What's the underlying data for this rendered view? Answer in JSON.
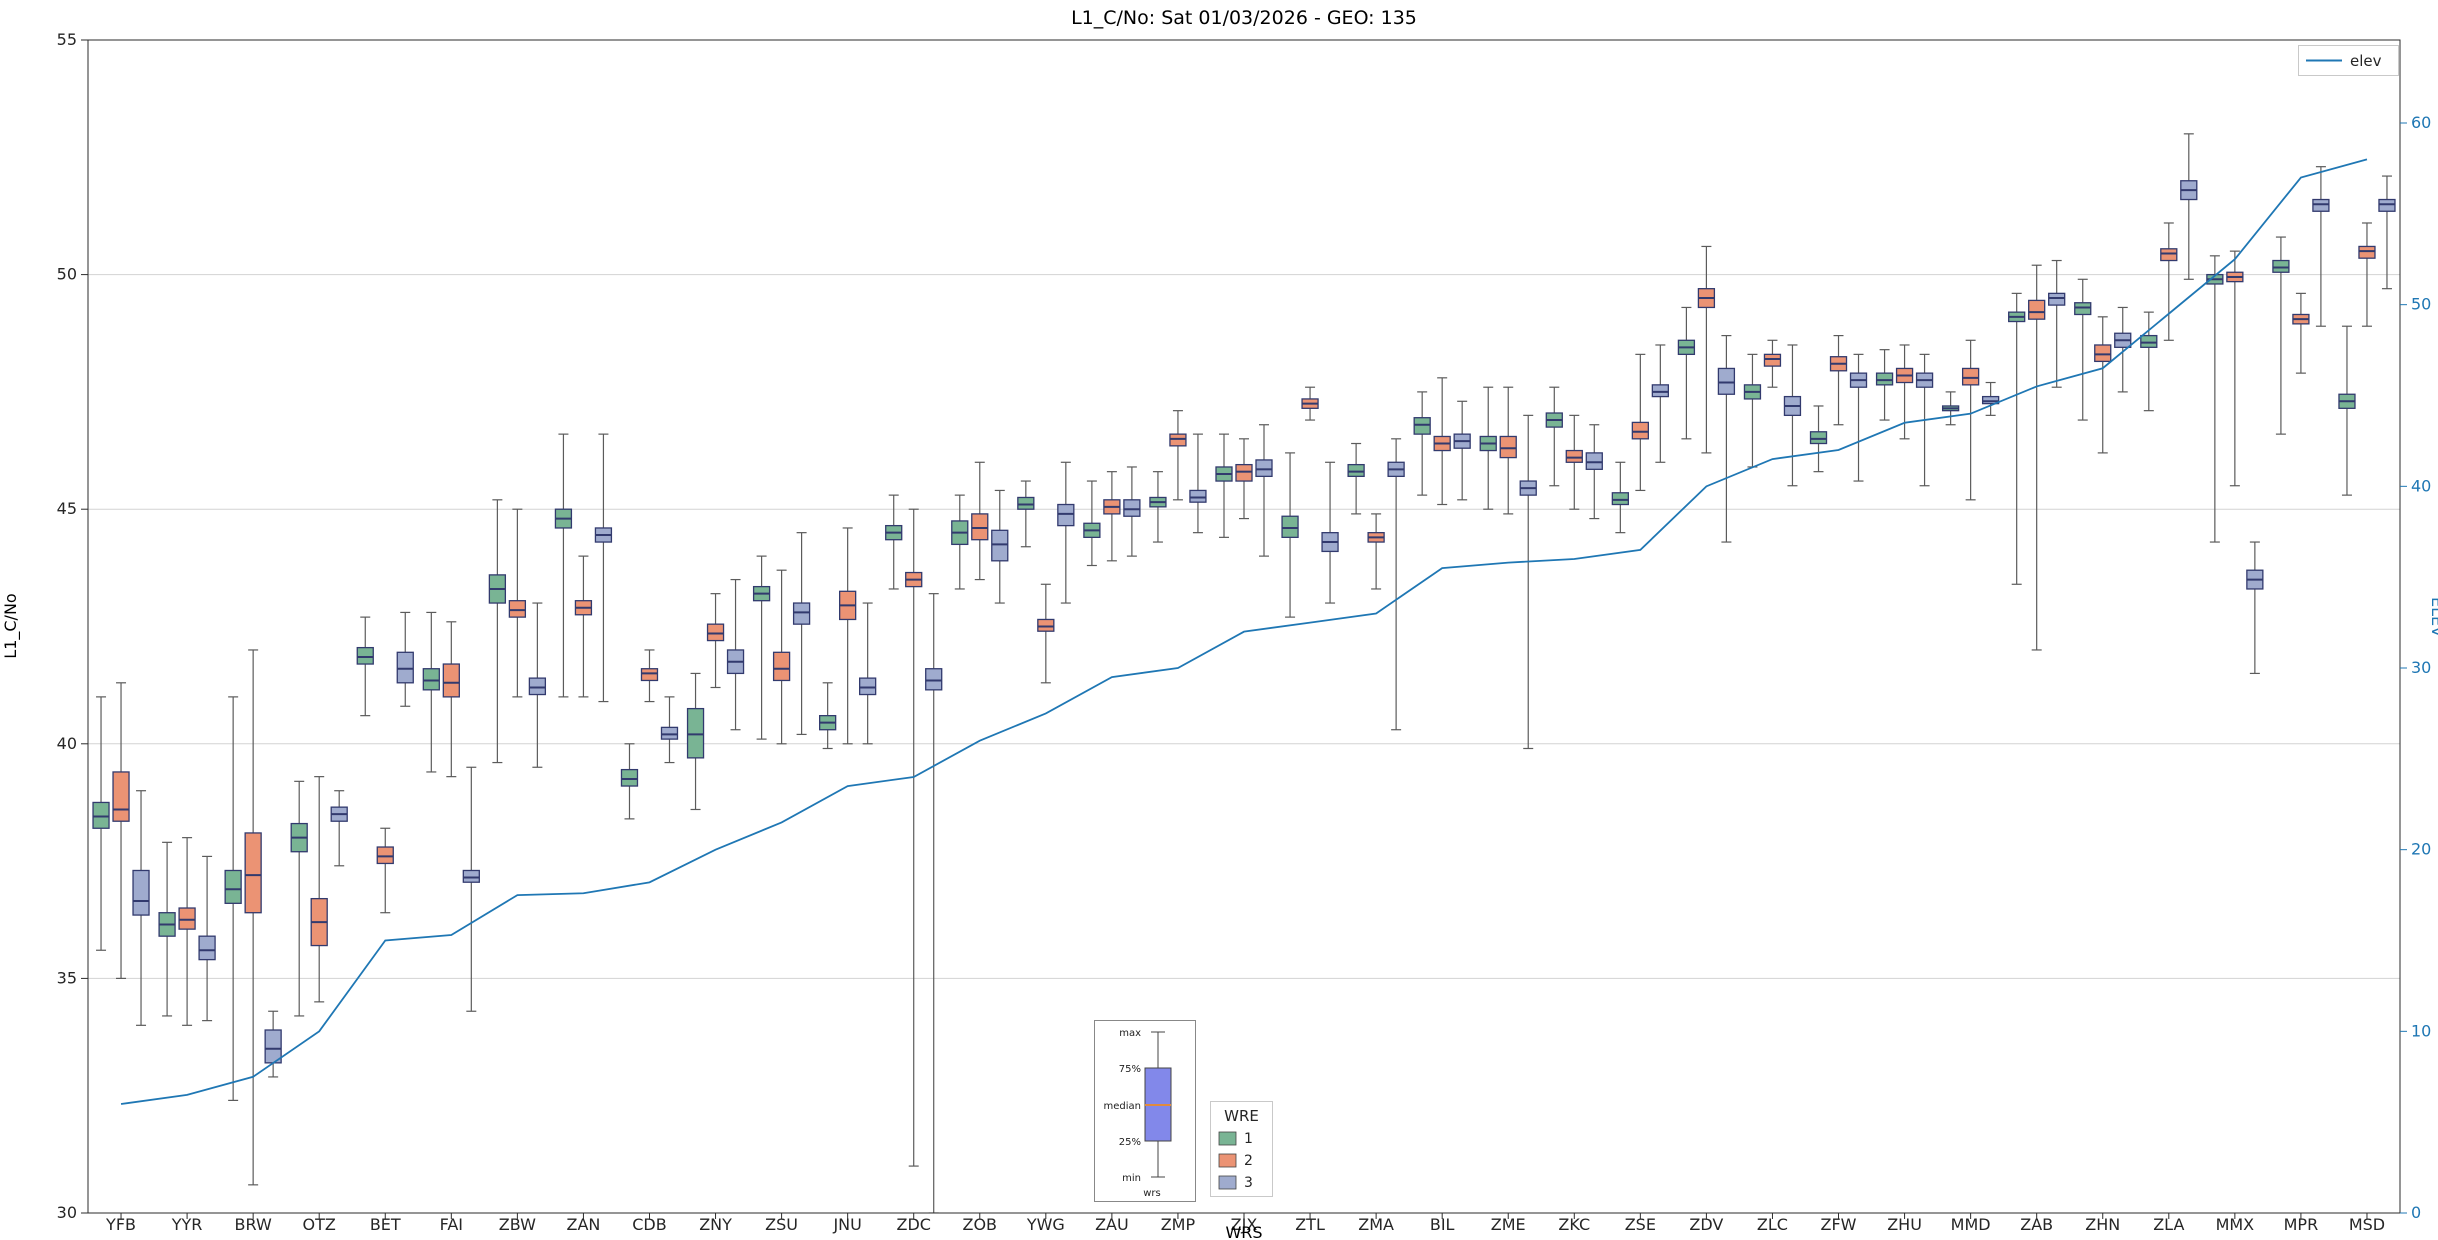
{
  "figure": {
    "title": "L1_C/No: Sat 01/03/2026 - GEO: 135"
  },
  "chart_data": {
    "type": "boxplot",
    "title": "L1_C/No: Sat 01/03/2026 - GEO: 135",
    "xlabel": "WRS",
    "ylabel_left": "L1_C/No",
    "ylabel_right": "ELEV",
    "grid": true,
    "legend_position": "center-bottom (WRE), top-right (elev)",
    "axes": {
      "left": {
        "label": "L1_C/No",
        "range": [
          30,
          55
        ],
        "ticks": [
          30,
          35,
          40,
          45,
          50,
          55
        ],
        "color": "#262626"
      },
      "right": {
        "label": "ELEV",
        "range": [
          0,
          60
        ],
        "ticks": [
          0,
          10,
          20,
          30,
          40,
          50,
          60
        ],
        "color": "#1f77b4"
      }
    },
    "categories": [
      "YFB",
      "YYR",
      "BRW",
      "OTZ",
      "BET",
      "FAI",
      "ZBW",
      "ZAN",
      "CDB",
      "ZNY",
      "ZSU",
      "JNU",
      "ZDC",
      "ZOB",
      "YWG",
      "ZAU",
      "ZMP",
      "ZJX",
      "ZTL",
      "ZMA",
      "BIL",
      "ZME",
      "ZKC",
      "ZSE",
      "ZDV",
      "ZLC",
      "ZFW",
      "ZHU",
      "MMD",
      "ZAB",
      "ZHN",
      "ZLA",
      "MMX",
      "MPR",
      "MSD"
    ],
    "box_stats_order": [
      "min",
      "q1",
      "median",
      "q3",
      "max"
    ],
    "box_edge_color": "#323a6e",
    "whisker_color": "#5b5b5b",
    "grid_color": "#d3d3d3",
    "spine_color": "#2b2b2b",
    "series": [
      {
        "name": "1",
        "color": "#79b494",
        "box_stats": [
          [
            35.6,
            38.2,
            38.45,
            38.75,
            41.0
          ],
          [
            34.2,
            35.9,
            36.15,
            36.4,
            37.9
          ],
          [
            32.4,
            36.6,
            36.9,
            37.3,
            41.0
          ],
          [
            34.2,
            37.7,
            38.0,
            38.3,
            39.2
          ],
          [
            40.6,
            41.7,
            41.85,
            42.05,
            42.7
          ],
          [
            39.4,
            41.15,
            41.35,
            41.6,
            42.8
          ],
          [
            39.6,
            43.0,
            43.3,
            43.6,
            45.2
          ],
          [
            41.0,
            44.6,
            44.8,
            45.0,
            46.6
          ],
          [
            38.4,
            39.1,
            39.25,
            39.45,
            40.0
          ],
          [
            38.6,
            39.7,
            40.2,
            40.75,
            41.5
          ],
          [
            40.1,
            43.05,
            43.2,
            43.35,
            44.0
          ],
          [
            39.9,
            40.3,
            40.45,
            40.6,
            41.3
          ],
          [
            43.3,
            44.35,
            44.5,
            44.65,
            45.3
          ],
          [
            43.3,
            44.25,
            44.5,
            44.75,
            45.3
          ],
          [
            44.2,
            45.0,
            45.1,
            45.25,
            45.6
          ],
          [
            43.8,
            44.4,
            44.55,
            44.7,
            45.6
          ],
          [
            44.3,
            45.05,
            45.15,
            45.25,
            45.8
          ],
          [
            44.4,
            45.6,
            45.75,
            45.9,
            46.6
          ],
          [
            42.7,
            44.4,
            44.6,
            44.85,
            46.2
          ],
          [
            44.9,
            45.7,
            45.8,
            45.95,
            46.4
          ],
          [
            45.3,
            46.6,
            46.8,
            46.95,
            47.5
          ],
          [
            45.0,
            46.25,
            46.4,
            46.55,
            47.6
          ],
          [
            45.5,
            46.75,
            46.9,
            47.05,
            47.6
          ],
          [
            44.5,
            45.1,
            45.2,
            45.35,
            46.0
          ],
          [
            46.5,
            48.3,
            48.45,
            48.6,
            49.3
          ],
          [
            45.9,
            47.35,
            47.5,
            47.65,
            48.3
          ],
          [
            45.8,
            46.4,
            46.5,
            46.65,
            47.2
          ],
          [
            46.9,
            47.65,
            47.75,
            47.9,
            48.4
          ],
          [
            46.8,
            47.1,
            47.15,
            47.2,
            47.5
          ],
          [
            43.4,
            49.0,
            49.1,
            49.2,
            49.6
          ],
          [
            46.9,
            49.15,
            49.3,
            49.4,
            49.9
          ],
          [
            47.1,
            48.45,
            48.55,
            48.7,
            49.2
          ],
          [
            44.3,
            49.8,
            49.9,
            50.0,
            50.4
          ],
          [
            46.6,
            50.05,
            50.15,
            50.3,
            50.8
          ],
          [
            45.3,
            47.15,
            47.3,
            47.45,
            48.9
          ]
        ]
      },
      {
        "name": "2",
        "color": "#eb9374",
        "box_stats": [
          [
            35.0,
            38.35,
            38.6,
            39.4,
            41.3
          ],
          [
            34.0,
            36.05,
            36.25,
            36.5,
            38.0
          ],
          [
            30.6,
            36.4,
            37.2,
            38.1,
            42.0
          ],
          [
            34.5,
            35.7,
            36.2,
            36.7,
            39.3
          ],
          [
            36.4,
            37.45,
            37.6,
            37.8,
            38.2
          ],
          [
            39.3,
            41.0,
            41.3,
            41.7,
            42.6
          ],
          [
            41.0,
            42.7,
            42.85,
            43.05,
            45.0
          ],
          [
            41.0,
            42.75,
            42.9,
            43.05,
            44.0
          ],
          [
            40.9,
            41.35,
            41.5,
            41.6,
            42.0
          ],
          [
            41.2,
            42.2,
            42.35,
            42.55,
            43.2
          ],
          [
            40.0,
            41.35,
            41.6,
            41.95,
            43.7
          ],
          [
            40.0,
            42.65,
            42.95,
            43.25,
            44.6
          ],
          [
            31.0,
            43.35,
            43.5,
            43.65,
            45.0
          ],
          [
            43.5,
            44.35,
            44.6,
            44.9,
            46.0
          ],
          [
            41.3,
            42.4,
            42.5,
            42.65,
            43.4
          ],
          [
            43.9,
            44.9,
            45.05,
            45.2,
            45.8
          ],
          [
            45.2,
            46.35,
            46.5,
            46.6,
            47.1
          ],
          [
            44.8,
            45.6,
            45.8,
            45.95,
            46.5
          ],
          [
            46.9,
            47.15,
            47.25,
            47.35,
            47.6
          ],
          [
            43.3,
            44.3,
            44.4,
            44.5,
            44.9
          ],
          [
            45.1,
            46.25,
            46.4,
            46.55,
            47.8
          ],
          [
            44.9,
            46.1,
            46.3,
            46.55,
            47.6
          ],
          [
            45.0,
            46.0,
            46.1,
            46.25,
            47.0
          ],
          [
            45.4,
            46.5,
            46.65,
            46.85,
            48.3
          ],
          [
            46.2,
            49.3,
            49.5,
            49.7,
            50.6
          ],
          [
            47.6,
            48.05,
            48.2,
            48.3,
            48.6
          ],
          [
            46.8,
            47.95,
            48.1,
            48.25,
            48.7
          ],
          [
            46.5,
            47.7,
            47.85,
            48.0,
            48.5
          ],
          [
            45.2,
            47.65,
            47.8,
            48.0,
            48.6
          ],
          [
            42.0,
            49.05,
            49.2,
            49.45,
            50.2
          ],
          [
            46.2,
            48.15,
            48.3,
            48.5,
            49.1
          ],
          [
            48.6,
            50.3,
            50.45,
            50.55,
            51.1
          ],
          [
            45.5,
            49.85,
            49.95,
            50.05,
            50.5
          ],
          [
            47.9,
            48.95,
            49.05,
            49.15,
            49.6
          ],
          [
            48.9,
            50.35,
            50.5,
            50.6,
            51.1
          ]
        ]
      },
      {
        "name": "3",
        "color": "#9fabce",
        "box_stats": [
          [
            34.0,
            36.35,
            36.65,
            37.3,
            39.0
          ],
          [
            34.1,
            35.4,
            35.6,
            35.9,
            37.6
          ],
          [
            32.9,
            33.2,
            33.5,
            33.9,
            34.3
          ],
          [
            37.4,
            38.35,
            38.5,
            38.65,
            39.0
          ],
          [
            40.8,
            41.3,
            41.6,
            41.95,
            42.8
          ],
          [
            34.3,
            37.05,
            37.15,
            37.3,
            39.5
          ],
          [
            39.5,
            41.05,
            41.2,
            41.4,
            43.0
          ],
          [
            40.9,
            44.3,
            44.45,
            44.6,
            46.6
          ],
          [
            39.6,
            40.1,
            40.2,
            40.35,
            41.0
          ],
          [
            40.3,
            41.5,
            41.75,
            42.0,
            43.5
          ],
          [
            40.2,
            42.55,
            42.8,
            43.0,
            44.5
          ],
          [
            40.0,
            41.05,
            41.2,
            41.4,
            43.0
          ],
          [
            30.0,
            41.15,
            41.35,
            41.6,
            43.2
          ],
          [
            43.0,
            43.9,
            44.25,
            44.55,
            45.4
          ],
          [
            43.0,
            44.65,
            44.9,
            45.1,
            46.0
          ],
          [
            44.0,
            44.85,
            45.0,
            45.2,
            45.9
          ],
          [
            44.5,
            45.15,
            45.25,
            45.4,
            46.6
          ],
          [
            44.0,
            45.7,
            45.85,
            46.05,
            46.8
          ],
          [
            43.0,
            44.1,
            44.3,
            44.5,
            46.0
          ],
          [
            40.3,
            45.7,
            45.85,
            46.0,
            46.5
          ],
          [
            45.2,
            46.3,
            46.45,
            46.6,
            47.3
          ],
          [
            39.9,
            45.3,
            45.45,
            45.6,
            47.0
          ],
          [
            44.8,
            45.85,
            46.0,
            46.2,
            46.8
          ],
          [
            46.0,
            47.4,
            47.5,
            47.65,
            48.5
          ],
          [
            44.3,
            47.45,
            47.7,
            48.0,
            48.7
          ],
          [
            45.5,
            47.0,
            47.2,
            47.4,
            48.5
          ],
          [
            45.6,
            47.6,
            47.75,
            47.9,
            48.3
          ],
          [
            45.5,
            47.6,
            47.75,
            47.9,
            48.3
          ],
          [
            47.0,
            47.25,
            47.3,
            47.4,
            47.7
          ],
          [
            47.6,
            49.35,
            49.5,
            49.6,
            50.3
          ],
          [
            47.5,
            48.45,
            48.6,
            48.75,
            49.3
          ],
          [
            49.9,
            51.6,
            51.8,
            52.0,
            53.0
          ],
          [
            41.5,
            43.3,
            43.5,
            43.7,
            44.3
          ],
          [
            48.9,
            51.35,
            51.5,
            51.6,
            52.3
          ],
          [
            49.7,
            51.35,
            51.5,
            51.6,
            52.1
          ]
        ]
      }
    ],
    "line_series": {
      "name": "elev",
      "color": "#1f77b4",
      "axis": "right",
      "values": [
        6,
        6.5,
        7.5,
        10,
        15,
        15.3,
        17.5,
        17.6,
        18.2,
        20,
        21.5,
        23.5,
        24,
        26,
        27.5,
        29.5,
        30,
        32,
        32.5,
        33,
        35.5,
        35.8,
        36,
        36.5,
        40,
        41.5,
        42,
        43.5,
        44,
        45.5,
        46.5,
        49.5,
        52.5,
        57,
        58
      ]
    },
    "legend_wre": {
      "title": "WRE"
    },
    "inset": {
      "labels": [
        "max",
        "75%",
        "median",
        "25%",
        "min"
      ],
      "caption": "wrs",
      "box_color": "#8288ea",
      "median_color": "#e08a3e"
    }
  }
}
